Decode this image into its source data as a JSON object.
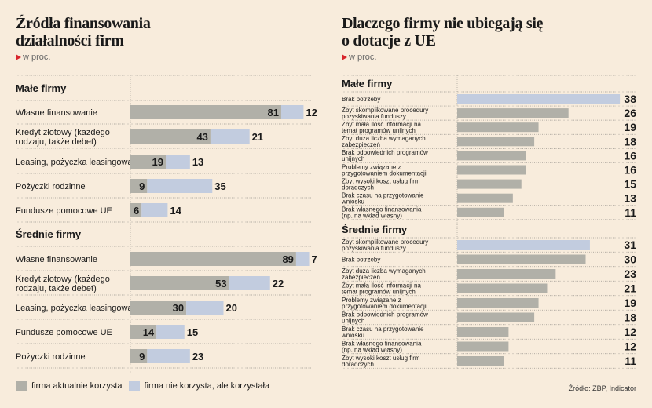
{
  "left": {
    "title_line1": "Źródła finansowania",
    "title_line2": "działalności firm",
    "unit": "w proc.",
    "legend": [
      {
        "label": "firma aktualnie korzysta",
        "color": "#b1b0a8"
      },
      {
        "label": "firma nie korzysta, ale korzystała",
        "color": "#c2ccdf"
      }
    ]
  },
  "right": {
    "title_line1": "Dlaczego firmy nie ubiegają się",
    "title_line2": "o dotacje z UE",
    "unit": "w proc.",
    "source": "Źródło: ZBP, Indicator"
  },
  "chart_data": [
    {
      "type": "bar",
      "stacked": true,
      "orientation": "horizontal",
      "series_names": [
        "firma aktualnie korzysta",
        "firma nie korzysta, ale korzystała"
      ],
      "colors": [
        "#b1b0a8",
        "#c2ccdf"
      ],
      "groups": [
        {
          "name": "Małe firmy",
          "categories": [
            "Własne finansowanie",
            "Kredyt złotowy (każdego rodzaju, także debet)",
            "Leasing, pożyczka leasingowa",
            "Pożyczki rodzinne",
            "Fundusze pomocowe UE"
          ],
          "values": [
            [
              81,
              12
            ],
            [
              43,
              21
            ],
            [
              19,
              13
            ],
            [
              9,
              35
            ],
            [
              6,
              14
            ]
          ]
        },
        {
          "name": "Średnie firmy",
          "categories": [
            "Własne finansowanie",
            "Kredyt złotowy (każdego rodzaju, także debet)",
            "Leasing, pożyczka leasingowa",
            "Fundusze pomocowe UE",
            "Pożyczki rodzinne"
          ],
          "values": [
            [
              89,
              7
            ],
            [
              53,
              22
            ],
            [
              30,
              20
            ],
            [
              14,
              15
            ],
            [
              9,
              23
            ]
          ]
        }
      ]
    },
    {
      "type": "bar",
      "orientation": "horizontal",
      "colors": {
        "default": "#b1b0a8",
        "highlight": "#c2ccdf"
      },
      "groups": [
        {
          "name": "Małe firmy",
          "categories": [
            "Brak potrzeby",
            "Zbyt skomplikowane procedury pozyskiwania funduszy",
            "Zbyt mała ilość informacji na temat programów unijnych",
            "Zbyt duża liczba wymaganych zabezpieczeń",
            "Brak odpowiednich programów unijnych",
            "Problemy związane z przygotowaniem dokumentacji",
            "Zbyt wysoki koszt usług firm doradczych",
            "Brak czasu na przygotowanie wniosku",
            "Brak własnego finansowania (np. na wkład własny)"
          ],
          "values": [
            38,
            26,
            19,
            18,
            16,
            16,
            15,
            13,
            11
          ]
        },
        {
          "name": "Średnie firmy",
          "categories": [
            "Zbyt skomplikowane procedury pozyskiwania funduszy",
            "Brak potrzeby",
            "Zbyt duża liczba wymaganych zabezpieczeń",
            "Zbyt mała ilość informacji na temat programów unijnych",
            "Problemy związane z przygotowaniem dokumentacji",
            "Brak odpowiednich programów unijnych",
            "Brak czasu na przygotowanie wniosku",
            "Brak własnego finansowania (np. na wkład własny)",
            "Zbyt wysoki koszt usług firm doradczych"
          ],
          "values": [
            31,
            30,
            23,
            21,
            19,
            18,
            12,
            12,
            11
          ]
        }
      ]
    }
  ]
}
